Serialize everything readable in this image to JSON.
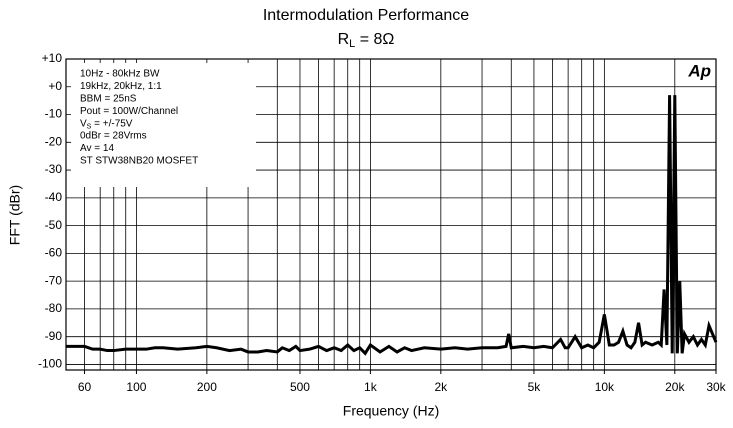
{
  "chart_data": {
    "type": "line",
    "title": "Intermodulation Performance",
    "subtitle": [
      "R",
      "L",
      " = 8Ω"
    ],
    "xlabel": "Frequency (Hz)",
    "ylabel": "FFT (dBr)",
    "logo": "Ap",
    "annotation": [
      "10Hz - 80kHz BW",
      "19kHz, 20kHz, 1:1",
      "BBM = 25nS",
      "Pout = 100W/Channel",
      [
        "V",
        "S",
        " = +/-75V"
      ],
      "0dBr = 28Vrms",
      "Av = 14",
      "ST STW38NB20 MOSFET"
    ],
    "xscale": "log",
    "grid": true,
    "color": "#000000",
    "xlim": [
      50,
      30000
    ],
    "ylim": [
      -102,
      10
    ],
    "xticks": [
      60,
      100,
      200,
      500,
      {
        "value": 1000,
        "label": "1k"
      },
      {
        "value": 2000,
        "label": "2k"
      },
      {
        "value": 5000,
        "label": "5k"
      },
      {
        "value": 10000,
        "label": "10k"
      },
      {
        "value": 20000,
        "label": "20k"
      },
      {
        "value": 30000,
        "label": "30k"
      }
    ],
    "xgrid": [
      60,
      70,
      80,
      90,
      100,
      200,
      300,
      400,
      500,
      600,
      700,
      800,
      900,
      1000,
      2000,
      3000,
      4000,
      5000,
      6000,
      7000,
      8000,
      9000,
      10000,
      20000,
      30000
    ],
    "yticks": [
      {
        "value": 10,
        "label": "+10"
      },
      {
        "value": 0,
        "label": "+0"
      },
      -10,
      -20,
      -30,
      -40,
      -50,
      -60,
      -70,
      -80,
      -90,
      -100
    ],
    "x": [
      50,
      55,
      60,
      65,
      70,
      75,
      80,
      90,
      100,
      110,
      120,
      130,
      150,
      180,
      200,
      220,
      250,
      280,
      300,
      330,
      360,
      400,
      420,
      450,
      480,
      500,
      550,
      600,
      650,
      700,
      750,
      800,
      850,
      900,
      950,
      1000,
      1100,
      1200,
      1300,
      1400,
      1500,
      1700,
      2000,
      2300,
      2600,
      3000,
      3500,
      3800,
      3900,
      4000,
      4500,
      5000,
      5500,
      6000,
      6500,
      6800,
      7000,
      7500,
      8000,
      8500,
      9000,
      9500,
      10000,
      10500,
      11000,
      11500,
      12000,
      12500,
      13000,
      13500,
      14000,
      14500,
      15000,
      16000,
      17000,
      17500,
      18000,
      18500,
      19000,
      19500,
      20000,
      20500,
      21000,
      21500,
      22000,
      23000,
      24000,
      25000,
      26000,
      27000,
      28000,
      30000
    ],
    "values": [
      -93.5,
      -93.5,
      -93.5,
      -94.5,
      -94.5,
      -95,
      -95,
      -94.5,
      -94.5,
      -94.5,
      -94,
      -94,
      -94.5,
      -94,
      -93.5,
      -94,
      -95,
      -94.5,
      -95.5,
      -95.5,
      -95,
      -95.5,
      -94,
      -95,
      -93.5,
      -95,
      -94.5,
      -93.5,
      -95,
      -94,
      -95,
      -93,
      -95,
      -94,
      -96,
      -93,
      -95.5,
      -93.5,
      -95.5,
      -94,
      -95,
      -94,
      -94.5,
      -94,
      -94.5,
      -94,
      -94,
      -93.5,
      -89,
      -94,
      -93.5,
      -94,
      -93.5,
      -94,
      -91,
      -94,
      -94,
      -90,
      -94,
      -93,
      -94,
      -92,
      -82,
      -93,
      -93,
      -92,
      -88,
      -93,
      -94,
      -92,
      -85,
      -93,
      -92,
      -93,
      -92,
      -93,
      -73,
      -93,
      -3,
      -96,
      -3,
      -96,
      -70,
      -96,
      -89,
      -92,
      -90,
      -93,
      -91,
      -93,
      -86,
      -92
    ]
  }
}
